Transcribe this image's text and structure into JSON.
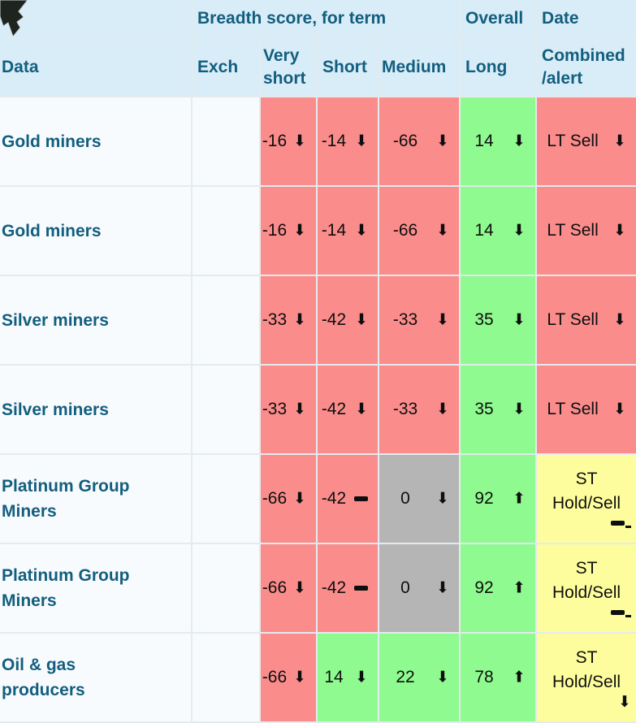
{
  "group_header": {
    "breadth": "Breadth score, for term",
    "overall": "Overall",
    "date": "Date"
  },
  "columns": {
    "data": "Data",
    "exch": "Exch",
    "very_short": "Very short",
    "short": "Short",
    "medium": "Medium",
    "long": "Long",
    "combined": "Combined /alert"
  },
  "icons": {
    "down": "⬇",
    "up": "⬆",
    "flat": "css-dash",
    "cursor": "mouse-pointer"
  },
  "colors": {
    "header_bg": "#d8edf8",
    "row_bg": "#f8fbfe",
    "teal": "#135e7e",
    "red": "#fa8c8c",
    "green": "#8ffa8f",
    "gray": "#b5b5b5",
    "yellow": "#fdfd9d",
    "border": "#e4ebee",
    "ink": "#0e0e0e"
  },
  "rows": [
    {
      "name": "Gold miners",
      "exch": "",
      "scores": [
        {
          "value": "-16",
          "trend": "down",
          "status": "red"
        },
        {
          "value": "-14",
          "trend": "down",
          "status": "red"
        },
        {
          "value": "-66",
          "trend": "down",
          "status": "red"
        },
        {
          "value": "14",
          "trend": "down",
          "status": "green"
        }
      ],
      "alert": {
        "lines": [
          "LT Sell"
        ],
        "trend": "down",
        "status": "red"
      }
    },
    {
      "name": "Gold miners",
      "exch": "",
      "scores": [
        {
          "value": "-16",
          "trend": "down",
          "status": "red"
        },
        {
          "value": "-14",
          "trend": "down",
          "status": "red"
        },
        {
          "value": "-66",
          "trend": "down",
          "status": "red"
        },
        {
          "value": "14",
          "trend": "down",
          "status": "green"
        }
      ],
      "alert": {
        "lines": [
          "LT Sell"
        ],
        "trend": "down",
        "status": "red"
      }
    },
    {
      "name": "Silver miners",
      "exch": "",
      "scores": [
        {
          "value": "-33",
          "trend": "down",
          "status": "red"
        },
        {
          "value": "-42",
          "trend": "down",
          "status": "red"
        },
        {
          "value": "-33",
          "trend": "down",
          "status": "red"
        },
        {
          "value": "35",
          "trend": "down",
          "status": "green"
        }
      ],
      "alert": {
        "lines": [
          "LT Sell"
        ],
        "trend": "down",
        "status": "red"
      }
    },
    {
      "name": "Silver miners",
      "exch": "",
      "scores": [
        {
          "value": "-33",
          "trend": "down",
          "status": "red"
        },
        {
          "value": "-42",
          "trend": "down",
          "status": "red"
        },
        {
          "value": "-33",
          "trend": "down",
          "status": "red"
        },
        {
          "value": "35",
          "trend": "down",
          "status": "green"
        }
      ],
      "alert": {
        "lines": [
          "LT Sell"
        ],
        "trend": "down",
        "status": "red"
      }
    },
    {
      "name": "Platinum Group Miners",
      "exch": "",
      "scores": [
        {
          "value": "-66",
          "trend": "down",
          "status": "red"
        },
        {
          "value": "-42",
          "trend": "flat",
          "status": "red"
        },
        {
          "value": "0",
          "trend": "down",
          "status": "gray"
        },
        {
          "value": "92",
          "trend": "up",
          "status": "green"
        }
      ],
      "alert": {
        "lines": [
          "ST",
          "Hold/Sell"
        ],
        "trend": "flat",
        "status": "yellow"
      }
    },
    {
      "name": "Platinum Group Miners",
      "exch": "",
      "scores": [
        {
          "value": "-66",
          "trend": "down",
          "status": "red"
        },
        {
          "value": "-42",
          "trend": "flat",
          "status": "red"
        },
        {
          "value": "0",
          "trend": "down",
          "status": "gray"
        },
        {
          "value": "92",
          "trend": "up",
          "status": "green"
        }
      ],
      "alert": {
        "lines": [
          "ST",
          "Hold/Sell"
        ],
        "trend": "flat",
        "status": "yellow"
      }
    },
    {
      "name": "Oil & gas producers",
      "exch": "",
      "scores": [
        {
          "value": "-66",
          "trend": "down",
          "status": "red"
        },
        {
          "value": "14",
          "trend": "down",
          "status": "green"
        },
        {
          "value": "22",
          "trend": "down",
          "status": "green"
        },
        {
          "value": "78",
          "trend": "up",
          "status": "green"
        }
      ],
      "alert": {
        "lines": [
          "ST",
          "Hold/Sell"
        ],
        "trend": "down",
        "status": "yellow"
      }
    }
  ]
}
